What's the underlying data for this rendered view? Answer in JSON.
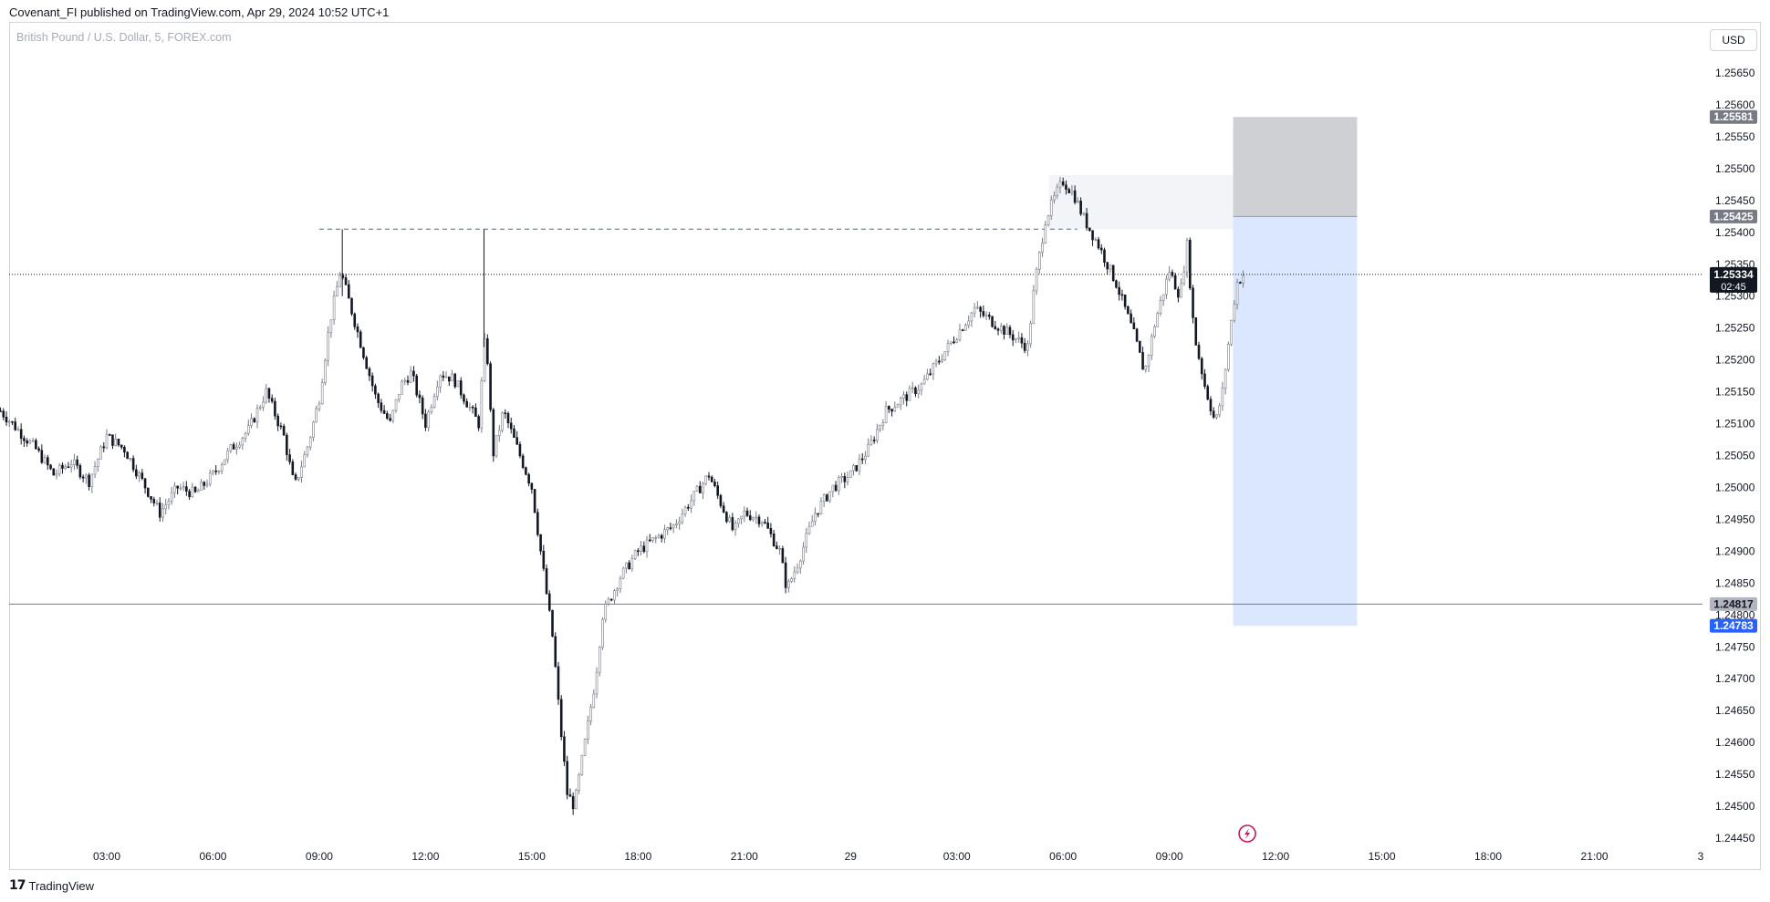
{
  "header": {
    "publisher": "Covenant_FI published on TradingView.com, Apr 29, 2024 10:52 UTC+1"
  },
  "legend": {
    "symbol": "British Pound / U.S. Dollar, 5, FOREX.com"
  },
  "toolbar": {
    "currency": "USD"
  },
  "footer": {
    "brand": "TradingView",
    "logo_icon": "tradingview-logo-icon"
  },
  "chart_data": {
    "type": "candlestick",
    "title": "",
    "xlabel": "",
    "ylabel": "",
    "ylim": [
      1.24425,
      1.25725
    ],
    "y_ticks": [
      "1.25650",
      "1.25600",
      "1.25550",
      "1.25500",
      "1.25450",
      "1.25400",
      "1.25350",
      "1.25300",
      "1.25250",
      "1.25200",
      "1.25150",
      "1.25100",
      "1.25050",
      "1.25000",
      "1.24950",
      "1.24900",
      "1.24850",
      "1.24800",
      "1.24750",
      "1.24700",
      "1.24650",
      "1.24600",
      "1.24550",
      "1.24500",
      "1.24450"
    ],
    "x_ticks": [
      {
        "label": "03:00",
        "t": 3
      },
      {
        "label": "06:00",
        "t": 6
      },
      {
        "label": "09:00",
        "t": 9
      },
      {
        "label": "12:00",
        "t": 12
      },
      {
        "label": "15:00",
        "t": 15
      },
      {
        "label": "18:00",
        "t": 18
      },
      {
        "label": "21:00",
        "t": 21
      },
      {
        "label": "29",
        "t": 24
      },
      {
        "label": "03:00",
        "t": 27
      },
      {
        "label": "06:00",
        "t": 30
      },
      {
        "label": "09:00",
        "t": 33
      },
      {
        "label": "12:00",
        "t": 36
      },
      {
        "label": "15:00",
        "t": 39
      },
      {
        "label": "18:00",
        "t": 42
      },
      {
        "label": "21:00",
        "t": 45
      },
      {
        "label": "3",
        "t": 48
      }
    ],
    "xlim": [
      0,
      48
    ],
    "price_path": [
      [
        0.0,
        1.2512
      ],
      [
        1.0,
        1.2506
      ],
      [
        1.5,
        1.2502
      ],
      [
        2.0,
        1.2504
      ],
      [
        2.5,
        1.2501
      ],
      [
        3.0,
        1.2508
      ],
      [
        3.5,
        1.2506
      ],
      [
        4.0,
        1.2501
      ],
      [
        4.5,
        1.2496
      ],
      [
        5.0,
        1.25
      ],
      [
        5.5,
        1.2499
      ],
      [
        6.0,
        1.2502
      ],
      [
        6.5,
        1.2506
      ],
      [
        7.0,
        1.2509
      ],
      [
        7.5,
        1.2515
      ],
      [
        8.0,
        1.2508
      ],
      [
        8.3,
        1.25
      ],
      [
        8.7,
        1.2507
      ],
      [
        9.0,
        1.2514
      ],
      [
        9.3,
        1.2526
      ],
      [
        9.6,
        1.2534
      ],
      [
        9.8,
        1.253
      ],
      [
        10.2,
        1.2522
      ],
      [
        10.6,
        1.2514
      ],
      [
        11.0,
        1.251
      ],
      [
        11.3,
        1.2516
      ],
      [
        11.6,
        1.2518
      ],
      [
        12.0,
        1.251
      ],
      [
        12.4,
        1.2518
      ],
      [
        12.8,
        1.2517
      ],
      [
        13.2,
        1.2513
      ],
      [
        13.5,
        1.251
      ],
      [
        13.7,
        1.2525
      ],
      [
        13.9,
        1.2505
      ],
      [
        14.2,
        1.2512
      ],
      [
        14.6,
        1.2506
      ],
      [
        15.0,
        1.25
      ],
      [
        15.3,
        1.2488
      ],
      [
        15.6,
        1.2476
      ],
      [
        15.8,
        1.2463
      ],
      [
        16.0,
        1.2452
      ],
      [
        16.2,
        1.245
      ],
      [
        16.5,
        1.246
      ],
      [
        16.8,
        1.247
      ],
      [
        17.0,
        1.248
      ],
      [
        17.5,
        1.2486
      ],
      [
        18.0,
        1.249
      ],
      [
        18.5,
        1.2492
      ],
      [
        19.0,
        1.2494
      ],
      [
        19.5,
        1.2498
      ],
      [
        20.0,
        1.2502
      ],
      [
        20.3,
        1.2498
      ],
      [
        20.7,
        1.2493
      ],
      [
        21.0,
        1.2496
      ],
      [
        21.5,
        1.2495
      ],
      [
        22.0,
        1.249
      ],
      [
        22.2,
        1.2484
      ],
      [
        22.5,
        1.2488
      ],
      [
        23.0,
        1.2496
      ],
      [
        23.5,
        1.25
      ],
      [
        24.0,
        1.2502
      ],
      [
        24.5,
        1.2506
      ],
      [
        25.0,
        1.2512
      ],
      [
        25.5,
        1.2514
      ],
      [
        26.0,
        1.2516
      ],
      [
        26.5,
        1.252
      ],
      [
        27.0,
        1.2524
      ],
      [
        27.5,
        1.2528
      ],
      [
        28.0,
        1.2526
      ],
      [
        28.5,
        1.2524
      ],
      [
        29.0,
        1.2522
      ],
      [
        29.2,
        1.2532
      ],
      [
        29.5,
        1.2542
      ],
      [
        29.8,
        1.2546
      ],
      [
        30.0,
        1.2548
      ],
      [
        30.3,
        1.2546
      ],
      [
        30.6,
        1.2542
      ],
      [
        31.0,
        1.2538
      ],
      [
        31.5,
        1.2532
      ],
      [
        32.0,
        1.2524
      ],
      [
        32.3,
        1.2518
      ],
      [
        32.6,
        1.2526
      ],
      [
        33.0,
        1.2534
      ],
      [
        33.3,
        1.253
      ],
      [
        33.5,
        1.2538
      ],
      [
        33.7,
        1.2524
      ],
      [
        34.0,
        1.2516
      ],
      [
        34.3,
        1.251
      ],
      [
        34.5,
        1.2515
      ],
      [
        34.7,
        1.2524
      ],
      [
        34.9,
        1.2532
      ],
      [
        35.1,
        1.25334
      ]
    ],
    "key_levels": {
      "resistance_dashed": 1.25405,
      "current_price": 1.25334,
      "support_line": 1.24817
    },
    "position_tool": {
      "type": "short",
      "entry": 1.25425,
      "stop": 1.25581,
      "target": 1.24783,
      "t_start": 34.8,
      "t_end": 38.3
    },
    "price_labels": [
      {
        "value": "1.25581",
        "bg": "#787b86",
        "fg": "#ffffff"
      },
      {
        "value": "1.25425",
        "bg": "#787b86",
        "fg": "#ffffff"
      },
      {
        "value": "1.25334",
        "bg": "#131722",
        "fg": "#ffffff",
        "countdown": "02:45"
      },
      {
        "value": "1.24817",
        "bg": "#b2b5be",
        "fg": "#131722"
      },
      {
        "value": "1.24783",
        "bg": "#2962ff",
        "fg": "#ffffff"
      }
    ],
    "colors": {
      "candle": "#131722",
      "candle_up_light": "#787b86",
      "profit_zone": "#dbe7ff",
      "stop_zone": "#cfd0d4",
      "dashed_line": "#4a67a8",
      "event_icon": "#c2185b"
    }
  }
}
